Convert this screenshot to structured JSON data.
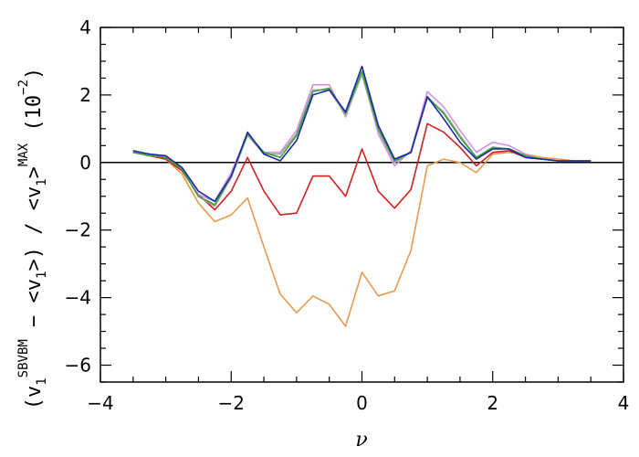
{
  "chart_data": {
    "type": "line",
    "xlabel": "ν",
    "ylabel": {
      "prefix": "(v",
      "sub1": "1",
      "sup1": "SBVBM",
      "middle": " − <v",
      "sub2": "1",
      "middle2": ">) / <v",
      "sub3": "1",
      "mid3": ">",
      "sup2": "MAX",
      "suffix": " (10",
      "sup3": "−2",
      "end": ")"
    },
    "xlim": [
      -4,
      4
    ],
    "ylim": [
      -6.5,
      4.0
    ],
    "xticks": [
      -4,
      -2,
      0,
      2,
      4
    ],
    "yticks": [
      -6,
      -4,
      -2,
      0,
      2,
      4
    ],
    "x_minor_step": 0.5,
    "y_minor_step": 0.5,
    "zero_line": true,
    "grid": false,
    "x": [
      -3.5,
      -3.25,
      -3.0,
      -2.75,
      -2.5,
      -2.25,
      -2.0,
      -1.75,
      -1.5,
      -1.25,
      -1.0,
      -0.75,
      -0.5,
      -0.25,
      0.0,
      0.25,
      0.5,
      0.75,
      1.0,
      1.25,
      1.5,
      1.75,
      2.0,
      2.25,
      2.5,
      2.75,
      3.0,
      3.25,
      3.5
    ],
    "series": [
      {
        "color": "#e69b4f",
        "values": [
          0.3,
          0.25,
          0.1,
          -0.35,
          -1.2,
          -1.75,
          -1.55,
          -1.05,
          -2.5,
          -3.9,
          -4.45,
          -3.95,
          -4.2,
          -4.85,
          -3.25,
          -3.95,
          -3.8,
          -2.6,
          -0.1,
          0.1,
          0.0,
          -0.3,
          0.25,
          0.3,
          0.25,
          0.15,
          0.1,
          0.05,
          0.05
        ]
      },
      {
        "color": "#d02020",
        "values": [
          0.3,
          0.2,
          0.1,
          -0.25,
          -0.95,
          -1.4,
          -0.85,
          0.15,
          -0.85,
          -1.55,
          -1.5,
          -0.4,
          -0.4,
          -1.0,
          0.4,
          -0.85,
          -1.35,
          -0.8,
          1.15,
          0.9,
          0.45,
          -0.1,
          0.3,
          0.35,
          0.15,
          0.1,
          0.05,
          0.05,
          0.05
        ]
      },
      {
        "color": "#d98ee0",
        "values": [
          0.35,
          0.25,
          0.15,
          -0.15,
          -0.95,
          -1.15,
          -0.3,
          0.85,
          0.3,
          0.3,
          0.95,
          2.3,
          2.3,
          1.35,
          2.65,
          0.85,
          -0.1,
          0.35,
          2.1,
          1.65,
          0.95,
          0.3,
          0.6,
          0.5,
          0.25,
          0.1,
          0.05,
          0.05,
          0.05
        ]
      },
      {
        "color": "#a8a8a8",
        "values": [
          0.3,
          0.25,
          0.15,
          -0.2,
          -1.0,
          -1.3,
          -0.45,
          0.8,
          0.25,
          0.25,
          0.85,
          2.15,
          2.15,
          1.4,
          2.6,
          0.95,
          0.0,
          0.3,
          1.9,
          1.5,
          0.8,
          0.15,
          0.45,
          0.4,
          0.2,
          0.1,
          0.05,
          0.05,
          0.05
        ]
      },
      {
        "color": "#3aa33a",
        "values": [
          0.3,
          0.2,
          0.15,
          -0.2,
          -1.0,
          -1.25,
          -0.4,
          0.85,
          0.3,
          0.15,
          0.8,
          2.1,
          2.2,
          1.45,
          2.7,
          1.0,
          0.05,
          0.3,
          1.95,
          1.45,
          0.75,
          0.15,
          0.45,
          0.4,
          0.2,
          0.1,
          0.05,
          0.05,
          0.05
        ]
      },
      {
        "color": "#1a2aa8",
        "values": [
          0.35,
          0.25,
          0.2,
          -0.15,
          -0.85,
          -1.15,
          -0.4,
          0.9,
          0.25,
          0.05,
          0.65,
          2.0,
          2.15,
          1.5,
          2.85,
          1.1,
          0.1,
          0.3,
          1.95,
          1.3,
          0.6,
          0.1,
          0.4,
          0.4,
          0.15,
          0.1,
          0.05,
          0.05,
          0.05
        ]
      }
    ]
  }
}
